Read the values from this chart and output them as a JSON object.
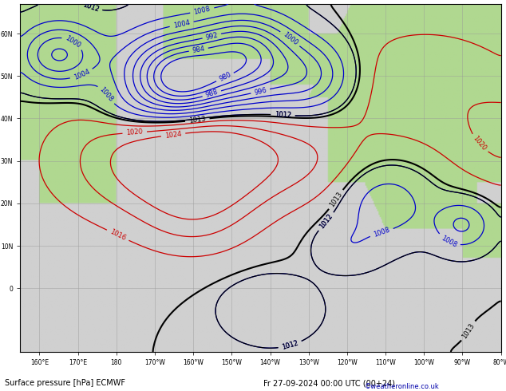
{
  "title_left": "Surface pressure [hPa] ECMWF",
  "title_right": "Fr 27-09-2024 00:00 UTC (00+24)",
  "copyright": "©weatheronline.co.uk",
  "figsize": [
    6.34,
    4.9
  ],
  "dpi": 100,
  "bg_ocean": "#d0d0d0",
  "bg_land": "#b0d890",
  "grid_color": "#999999",
  "grid_alpha": 0.6,
  "contour_blue_color": "#0000cc",
  "contour_red_color": "#cc0000",
  "contour_black_color": "#000000",
  "contour_linewidth": 0.9,
  "contour_black_linewidth": 1.5,
  "label_fontsize": 6,
  "bottom_fontsize": 7,
  "xlim": [
    155,
    280
  ],
  "ylim": [
    -15,
    67
  ],
  "xtick_pos": [
    160,
    170,
    180,
    190,
    200,
    210,
    220,
    230,
    240,
    250,
    260,
    270,
    280
  ],
  "xtick_labels": [
    "160°E",
    "170°E",
    "180",
    "170°W",
    "160°W",
    "150°W",
    "140°W",
    "130°W",
    "120°W",
    "110°W",
    "100°W",
    "90°W",
    "80°W"
  ],
  "ytick_pos": [
    0,
    10,
    20,
    30,
    40,
    50,
    60
  ],
  "ytick_labels": [
    "0",
    "10N",
    "20N",
    "30N",
    "40N",
    "50N",
    "60N"
  ]
}
